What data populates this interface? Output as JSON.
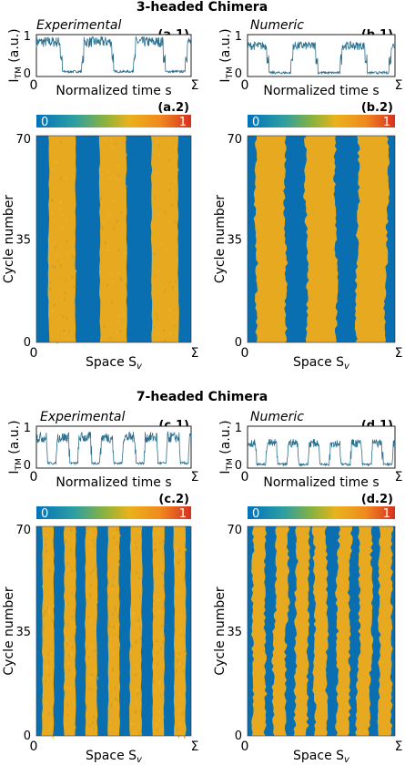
{
  "colors": {
    "background_blue": "#0a6fb0",
    "stripe_yellow": "#e6a91f",
    "trace_color": "#2b6f8e",
    "colorbar_stops": [
      "#0072bd",
      "#2f9fa0",
      "#8fb33a",
      "#eab21c",
      "#f08a1f",
      "#d7301f"
    ]
  },
  "sections": [
    {
      "title": "3-headed Chimera",
      "columns": [
        {
          "heading": "Experimental",
          "top_tag": "(a.1)",
          "bottom_tag": "(a.2)",
          "kind": "experimental"
        },
        {
          "heading": "Numeric",
          "top_tag": "(b.1)",
          "bottom_tag": "(b.2)",
          "kind": "numeric"
        }
      ]
    },
    {
      "title": "7-headed Chimera",
      "columns": [
        {
          "heading": "Experimental",
          "top_tag": "(c.1)",
          "bottom_tag": "(c.2)",
          "kind": "experimental"
        },
        {
          "heading": "Numeric",
          "top_tag": "(d.1)",
          "bottom_tag": "(d.2)",
          "kind": "numeric"
        }
      ]
    }
  ],
  "labels": {
    "trace_ylabel": "I",
    "trace_ylabel_sub": "TM",
    "trace_ylabel_unit": " (a.u.)",
    "trace_xlabel": "Normalized time s",
    "map_ylabel": "Cycle number",
    "map_xlabel": "Space S",
    "map_xlabel_sub": "v",
    "x_start": "0",
    "x_end": "Σ",
    "colorbar_min": "0",
    "colorbar_max": "1",
    "trace_y_ticks": [
      "0",
      "1"
    ],
    "map_y_ticks": [
      "0",
      "35",
      "70"
    ]
  },
  "chart_data": [
    {
      "panel": "(a.1)",
      "type": "line",
      "title": "",
      "xlabel": "Normalized time s",
      "ylabel": "I_TM (a.u.)",
      "ylim": [
        0,
        1
      ],
      "description_values": {
        "heads": 3,
        "high_level": 0.85,
        "low_level": 0.05
      }
    },
    {
      "panel": "(a.2)",
      "type": "heatmap",
      "xlabel": "Space S_v",
      "ylabel": "Cycle number",
      "ylim": [
        0,
        70
      ],
      "colorbar": [
        0,
        1
      ],
      "heads": 3
    },
    {
      "panel": "(b.1)",
      "type": "line",
      "xlabel": "Normalized time s",
      "ylabel": "I_TM (a.u.)",
      "ylim": [
        0,
        1
      ],
      "description_values": {
        "heads": 3,
        "high_level": 0.75,
        "low_level": 0.02
      }
    },
    {
      "panel": "(b.2)",
      "type": "heatmap",
      "xlabel": "Space S_v",
      "ylabel": "Cycle number",
      "ylim": [
        0,
        70
      ],
      "colorbar": [
        0,
        1
      ],
      "heads": 3
    },
    {
      "panel": "(c.1)",
      "type": "line",
      "xlabel": "Normalized time s",
      "ylabel": "I_TM (a.u.)",
      "ylim": [
        0,
        1
      ],
      "description_values": {
        "heads": 7,
        "high_level": 0.75,
        "low_level": 0.05
      }
    },
    {
      "panel": "(c.2)",
      "type": "heatmap",
      "xlabel": "Space S_v",
      "ylabel": "Cycle number",
      "ylim": [
        0,
        70
      ],
      "colorbar": [
        0,
        1
      ],
      "heads": 7
    },
    {
      "panel": "(d.1)",
      "type": "line",
      "xlabel": "Normalized time s",
      "ylabel": "I_TM (a.u.)",
      "ylim": [
        0,
        1
      ],
      "description_values": {
        "heads": 7,
        "high_level": 0.6,
        "low_level": 0.02
      }
    },
    {
      "panel": "(d.2)",
      "type": "heatmap",
      "xlabel": "Space S_v",
      "ylabel": "Cycle number",
      "ylim": [
        0,
        70
      ],
      "colorbar": [
        0,
        1
      ],
      "heads": 7
    }
  ]
}
